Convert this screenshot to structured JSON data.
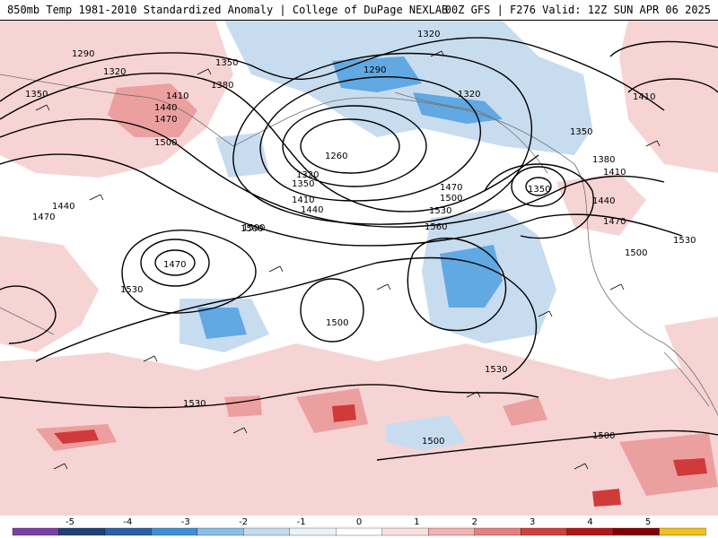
{
  "header": {
    "left_title": "850mb Temp 1981-2010 Standardized Anomaly | College of DuPage NEXLAB",
    "right_title": "00Z GFS | F276 Valid: 12Z SUN APR 06 2025"
  },
  "colorbar": {
    "tick_labels": [
      "-5",
      "-4",
      "-3",
      "-2",
      "-1",
      "0",
      "1",
      "2",
      "3",
      "4",
      "5"
    ],
    "colors": [
      "#7b3fa5",
      "#1f3f7a",
      "#2c5fa8",
      "#3f8fd8",
      "#8cbde8",
      "#c6dcf0",
      "#eaf2fa",
      "#ffffff",
      "#fbe1e1",
      "#f2b3b3",
      "#e68080",
      "#d14040",
      "#b01818",
      "#820000",
      "#f0c020"
    ]
  },
  "contours": {
    "labels": [
      "1290",
      "1320",
      "1350",
      "1350",
      "1380",
      "1410",
      "1440",
      "1470",
      "1500",
      "1440",
      "1470",
      "1500",
      "1260",
      "1290",
      "1320",
      "1320",
      "1350",
      "1410",
      "1440",
      "1470",
      "1500",
      "1530",
      "1560",
      "1500",
      "1470",
      "1530",
      "1500",
      "1530",
      "1530",
      "1500",
      "1500",
      "1350",
      "1380",
      "1410",
      "1440",
      "1470",
      "1500",
      "1530",
      "1410",
      "1350",
      "1320"
    ]
  },
  "colors": {
    "cold": "#bcd6ee",
    "cold_strong": "#5fa5e0",
    "warm": "#f6d0d0",
    "warm_strong": "#d64545",
    "contour": "#000000",
    "coast": "#707070"
  }
}
